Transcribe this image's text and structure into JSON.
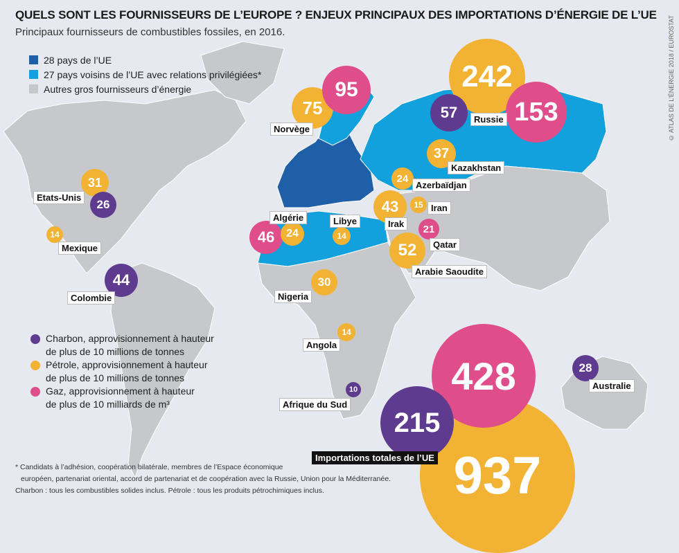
{
  "title": "QUELS SONT LES FOURNISSEURS DE L’EUROPE ? ENJEUX PRINCIPAUX DES IMPORTATIONS D’ÉNERGIE DE L’UE",
  "subtitle": "Principaux fournisseurs de combustibles fossiles, en 2016.",
  "credit": "© ATLAS DE L’ÉNERGIE 2018 / EUROSTAT",
  "colors": {
    "eu": "#1f5fa8",
    "neighbors": "#12a1dc",
    "other": "#c6c8cc",
    "coal": "#5f3b8f",
    "oil": "#f2b233",
    "gas": "#df4d8b"
  },
  "legend_regions": [
    {
      "label": "28 pays de l’UE",
      "color": "#1f5fa8"
    },
    {
      "label": "27 pays voisins de l’UE avec relations privilégiées*",
      "color": "#12a1dc"
    },
    {
      "label": "Autres gros fournisseurs d’énergie",
      "color": "#c6c8cc"
    }
  ],
  "legend_fuels": [
    {
      "line1": "Charbon, approvisionnement à hauteur",
      "line2": "de plus de 10 millions de tonnes",
      "color": "#5f3b8f"
    },
    {
      "line1": "Pétrole, approvisionnement à hauteur",
      "line2": "de plus de 10 millions de tonnes",
      "color": "#f2b233"
    },
    {
      "line1": "Gaz, approvisionnement à hauteur",
      "line2": "de plus de 10 milliards de m³",
      "color": "#df4d8b"
    }
  ],
  "countries": [
    "Norvège",
    "Russie",
    "Kazakhstan",
    "Azerbaïdjan",
    "Iran",
    "Irak",
    "Qatar",
    "Arabie Saoudite",
    "Algérie",
    "Libye",
    "Etats-Unis",
    "Mexique",
    "Colombie",
    "Nigeria",
    "Angola",
    "Afrique du Sud",
    "Australie"
  ],
  "total_label": "Importations totales de l’UE",
  "bubbles": [
    {
      "value": 75,
      "fuel": "oil"
    },
    {
      "value": 95,
      "fuel": "gas"
    },
    {
      "value": 242,
      "fuel": "oil"
    },
    {
      "value": 57,
      "fuel": "coal"
    },
    {
      "value": 153,
      "fuel": "gas"
    },
    {
      "value": 37,
      "fuel": "oil"
    },
    {
      "value": 24,
      "fuel": "oil"
    },
    {
      "value": 43,
      "fuel": "oil"
    },
    {
      "value": 15,
      "fuel": "oil"
    },
    {
      "value": 21,
      "fuel": "gas"
    },
    {
      "value": 52,
      "fuel": "oil"
    },
    {
      "value": 46,
      "fuel": "gas"
    },
    {
      "value": 24,
      "fuel": "oil"
    },
    {
      "value": 14,
      "fuel": "oil"
    },
    {
      "value": 31,
      "fuel": "oil"
    },
    {
      "value": 26,
      "fuel": "coal"
    },
    {
      "value": 14,
      "fuel": "oil"
    },
    {
      "value": 44,
      "fuel": "coal"
    },
    {
      "value": 30,
      "fuel": "oil"
    },
    {
      "value": 14,
      "fuel": "oil"
    },
    {
      "value": 10,
      "fuel": "coal"
    },
    {
      "value": 28,
      "fuel": "coal"
    },
    {
      "value": 937,
      "fuel": "oil"
    },
    {
      "value": 428,
      "fuel": "gas"
    },
    {
      "value": 215,
      "fuel": "coal"
    }
  ],
  "footnotes": [
    "* Candidats à l’adhésion, coopération bilatérale, membres de l’Espace économique",
    "européen, partenariat oriental, accord de partenariat et de coopération avec la Russie, Union pour la Méditerranée.",
    "Charbon : tous les combustibles solides inclus. Pétrole : tous les produits pétrochimiques inclus."
  ]
}
